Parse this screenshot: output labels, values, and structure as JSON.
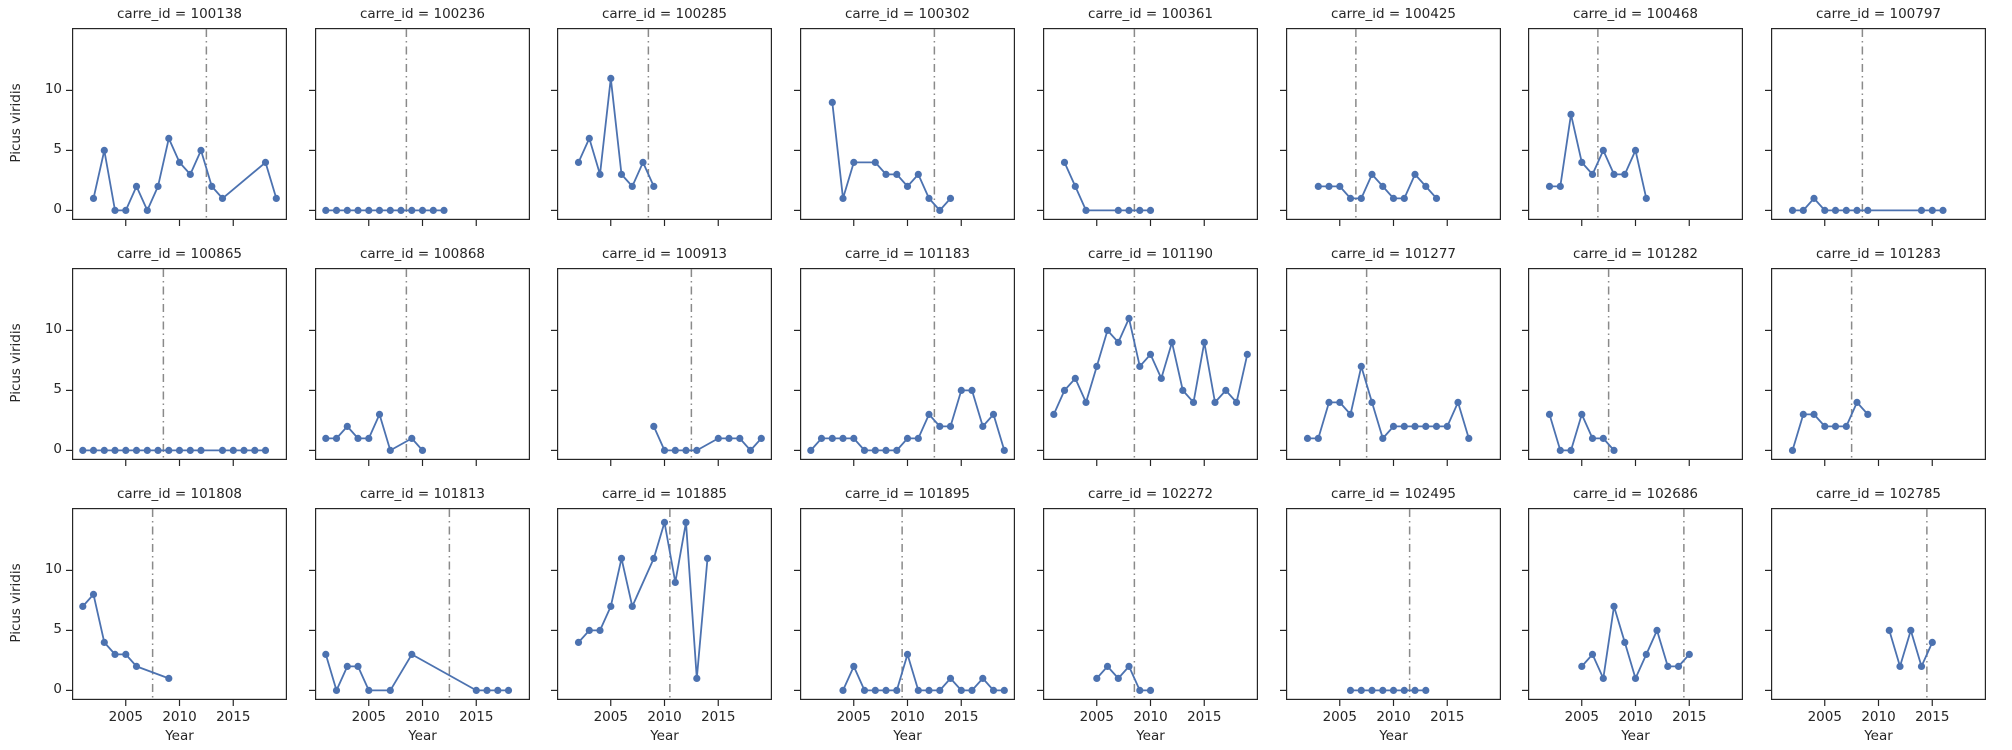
{
  "figure": {
    "x_tick_labels": [
      "2005",
      "2010",
      "2015"
    ],
    "y_tick_labels": [
      "0",
      "5",
      "10"
    ],
    "colors": {
      "series": "#4C72B0",
      "vline": "#8a8a8a",
      "axis": "#262626",
      "text": "#262626",
      "background": "#ffffff"
    }
  },
  "chart_data": {
    "type": "line",
    "facet_grid": {
      "rows": 3,
      "cols": 8,
      "facet_var": "carre_id"
    },
    "xlabel": "Year",
    "ylabel": "Picus viridis",
    "xlim": [
      2000,
      2020
    ],
    "ylim": [
      -0.8,
      15.2
    ],
    "x_ticks": [
      2005,
      2010,
      2015
    ],
    "y_ticks": [
      0,
      5,
      10
    ],
    "grid": false,
    "legend": "none",
    "marker": "circle",
    "vline_style": "dash-dot-gray",
    "panels": [
      {
        "carre_id": "100138",
        "title": "carre_id = 100138",
        "vline_year": 2012.5,
        "points": [
          [
            2002,
            1
          ],
          [
            2003,
            5
          ],
          [
            2004,
            0
          ],
          [
            2005,
            0
          ],
          [
            2006,
            2
          ],
          [
            2007,
            0
          ],
          [
            2008,
            2
          ],
          [
            2009,
            6
          ],
          [
            2010,
            4
          ],
          [
            2011,
            3
          ],
          [
            2012,
            5
          ],
          [
            2013,
            2
          ],
          [
            2014,
            1
          ],
          [
            2018,
            4
          ],
          [
            2019,
            1
          ]
        ]
      },
      {
        "carre_id": "100236",
        "title": "carre_id = 100236",
        "vline_year": 2008.5,
        "points": [
          [
            2001,
            0
          ],
          [
            2002,
            0
          ],
          [
            2003,
            0
          ],
          [
            2004,
            0
          ],
          [
            2005,
            0
          ],
          [
            2006,
            0
          ],
          [
            2007,
            0
          ],
          [
            2008,
            0
          ],
          [
            2009,
            0
          ],
          [
            2010,
            0
          ],
          [
            2011,
            0
          ],
          [
            2012,
            0
          ]
        ]
      },
      {
        "carre_id": "100285",
        "title": "carre_id = 100285",
        "vline_year": 2008.5,
        "points": [
          [
            2002,
            4
          ],
          [
            2003,
            6
          ],
          [
            2004,
            3
          ],
          [
            2005,
            11
          ],
          [
            2006,
            3
          ],
          [
            2007,
            2
          ],
          [
            2008,
            4
          ],
          [
            2009,
            2
          ]
        ]
      },
      {
        "carre_id": "100302",
        "title": "carre_id = 100302",
        "vline_year": 2012.5,
        "points": [
          [
            2003,
            9
          ],
          [
            2004,
            1
          ],
          [
            2005,
            4
          ],
          [
            2007,
            4
          ],
          [
            2008,
            3
          ],
          [
            2009,
            3
          ],
          [
            2010,
            2
          ],
          [
            2011,
            3
          ],
          [
            2012,
            1
          ],
          [
            2013,
            0
          ],
          [
            2014,
            1
          ]
        ]
      },
      {
        "carre_id": "100361",
        "title": "carre_id = 100361",
        "vline_year": 2008.5,
        "points": [
          [
            2002,
            4
          ],
          [
            2003,
            2
          ],
          [
            2004,
            0
          ],
          [
            2007,
            0
          ],
          [
            2008,
            0
          ],
          [
            2009,
            0
          ],
          [
            2010,
            0
          ]
        ]
      },
      {
        "carre_id": "100425",
        "title": "carre_id = 100425",
        "vline_year": 2006.5,
        "points": [
          [
            2003,
            2
          ],
          [
            2004,
            2
          ],
          [
            2005,
            2
          ],
          [
            2006,
            1
          ],
          [
            2007,
            1
          ],
          [
            2008,
            3
          ],
          [
            2009,
            2
          ],
          [
            2010,
            1
          ],
          [
            2011,
            1
          ],
          [
            2012,
            3
          ],
          [
            2013,
            2
          ],
          [
            2014,
            1
          ]
        ]
      },
      {
        "carre_id": "100468",
        "title": "carre_id = 100468",
        "vline_year": 2006.5,
        "points": [
          [
            2002,
            2
          ],
          [
            2003,
            2
          ],
          [
            2004,
            8
          ],
          [
            2005,
            4
          ],
          [
            2006,
            3
          ],
          [
            2007,
            5
          ],
          [
            2008,
            3
          ],
          [
            2009,
            3
          ],
          [
            2010,
            5
          ],
          [
            2011,
            1
          ]
        ]
      },
      {
        "carre_id": "100797",
        "title": "carre_id = 100797",
        "vline_year": 2008.5,
        "points": [
          [
            2002,
            0
          ],
          [
            2003,
            0
          ],
          [
            2004,
            1
          ],
          [
            2005,
            0
          ],
          [
            2006,
            0
          ],
          [
            2007,
            0
          ],
          [
            2008,
            0
          ],
          [
            2009,
            0
          ],
          [
            2014,
            0
          ],
          [
            2015,
            0
          ],
          [
            2016,
            0
          ]
        ]
      },
      {
        "carre_id": "100865",
        "title": "carre_id = 100865",
        "vline_year": 2008.5,
        "points": [
          [
            2001,
            0
          ],
          [
            2002,
            0
          ],
          [
            2003,
            0
          ],
          [
            2004,
            0
          ],
          [
            2005,
            0
          ],
          [
            2006,
            0
          ],
          [
            2007,
            0
          ],
          [
            2008,
            0
          ],
          [
            2009,
            0
          ],
          [
            2010,
            0
          ],
          [
            2011,
            0
          ],
          [
            2012,
            0
          ],
          [
            2014,
            0
          ],
          [
            2015,
            0
          ],
          [
            2016,
            0
          ],
          [
            2017,
            0
          ],
          [
            2018,
            0
          ]
        ]
      },
      {
        "carre_id": "100868",
        "title": "carre_id = 100868",
        "vline_year": 2008.5,
        "points": [
          [
            2001,
            1
          ],
          [
            2002,
            1
          ],
          [
            2003,
            2
          ],
          [
            2004,
            1
          ],
          [
            2005,
            1
          ],
          [
            2006,
            3
          ],
          [
            2007,
            0
          ],
          [
            2009,
            1
          ],
          [
            2010,
            0
          ]
        ]
      },
      {
        "carre_id": "100913",
        "title": "carre_id = 100913",
        "vline_year": 2012.5,
        "points": [
          [
            2009,
            2
          ],
          [
            2010,
            0
          ],
          [
            2011,
            0
          ],
          [
            2012,
            0
          ],
          [
            2013,
            0
          ],
          [
            2015,
            1
          ],
          [
            2016,
            1
          ],
          [
            2017,
            1
          ],
          [
            2018,
            0
          ],
          [
            2019,
            1
          ]
        ]
      },
      {
        "carre_id": "101183",
        "title": "carre_id = 101183",
        "vline_year": 2012.5,
        "points": [
          [
            2001,
            0
          ],
          [
            2002,
            1
          ],
          [
            2003,
            1
          ],
          [
            2004,
            1
          ],
          [
            2005,
            1
          ],
          [
            2006,
            0
          ],
          [
            2007,
            0
          ],
          [
            2008,
            0
          ],
          [
            2009,
            0
          ],
          [
            2010,
            1
          ],
          [
            2011,
            1
          ],
          [
            2012,
            3
          ],
          [
            2013,
            2
          ],
          [
            2014,
            2
          ],
          [
            2015,
            5
          ],
          [
            2016,
            5
          ],
          [
            2017,
            2
          ],
          [
            2018,
            3
          ],
          [
            2019,
            0
          ]
        ]
      },
      {
        "carre_id": "101190",
        "title": "carre_id = 101190",
        "vline_year": 2008.5,
        "points": [
          [
            2001,
            3
          ],
          [
            2002,
            5
          ],
          [
            2003,
            6
          ],
          [
            2004,
            4
          ],
          [
            2005,
            7
          ],
          [
            2006,
            10
          ],
          [
            2007,
            9
          ],
          [
            2008,
            11
          ],
          [
            2009,
            7
          ],
          [
            2010,
            8
          ],
          [
            2011,
            6
          ],
          [
            2012,
            9
          ],
          [
            2013,
            5
          ],
          [
            2014,
            4
          ],
          [
            2015,
            9
          ],
          [
            2016,
            4
          ],
          [
            2017,
            5
          ],
          [
            2018,
            4
          ],
          [
            2019,
            8
          ]
        ]
      },
      {
        "carre_id": "101277",
        "title": "carre_id = 101277",
        "vline_year": 2007.5,
        "points": [
          [
            2002,
            1
          ],
          [
            2003,
            1
          ],
          [
            2004,
            4
          ],
          [
            2005,
            4
          ],
          [
            2006,
            3
          ],
          [
            2007,
            7
          ],
          [
            2008,
            4
          ],
          [
            2009,
            1
          ],
          [
            2010,
            2
          ],
          [
            2011,
            2
          ],
          [
            2012,
            2
          ],
          [
            2013,
            2
          ],
          [
            2014,
            2
          ],
          [
            2015,
            2
          ],
          [
            2016,
            4
          ],
          [
            2017,
            1
          ]
        ]
      },
      {
        "carre_id": "101282",
        "title": "carre_id = 101282",
        "vline_year": 2007.5,
        "points": [
          [
            2002,
            3
          ],
          [
            2003,
            0
          ],
          [
            2004,
            0
          ],
          [
            2005,
            3
          ],
          [
            2006,
            1
          ],
          [
            2007,
            1
          ],
          [
            2008,
            0
          ]
        ]
      },
      {
        "carre_id": "101283",
        "title": "carre_id = 101283",
        "vline_year": 2007.5,
        "points": [
          [
            2002,
            0
          ],
          [
            2003,
            3
          ],
          [
            2004,
            3
          ],
          [
            2005,
            2
          ],
          [
            2006,
            2
          ],
          [
            2007,
            2
          ],
          [
            2008,
            4
          ],
          [
            2009,
            3
          ]
        ]
      },
      {
        "carre_id": "101808",
        "title": "carre_id = 101808",
        "vline_year": 2007.5,
        "points": [
          [
            2001,
            7
          ],
          [
            2002,
            8
          ],
          [
            2003,
            4
          ],
          [
            2004,
            3
          ],
          [
            2005,
            3
          ],
          [
            2006,
            2
          ],
          [
            2009,
            1
          ]
        ]
      },
      {
        "carre_id": "101813",
        "title": "carre_id = 101813",
        "vline_year": 2012.5,
        "points": [
          [
            2001,
            3
          ],
          [
            2002,
            0
          ],
          [
            2003,
            2
          ],
          [
            2004,
            2
          ],
          [
            2005,
            0
          ],
          [
            2007,
            0
          ],
          [
            2009,
            3
          ],
          [
            2015,
            0
          ],
          [
            2016,
            0
          ],
          [
            2017,
            0
          ],
          [
            2018,
            0
          ]
        ]
      },
      {
        "carre_id": "101885",
        "title": "carre_id = 101885",
        "vline_year": 2010.5,
        "points": [
          [
            2002,
            4
          ],
          [
            2003,
            5
          ],
          [
            2004,
            5
          ],
          [
            2005,
            7
          ],
          [
            2006,
            11
          ],
          [
            2007,
            7
          ],
          [
            2009,
            11
          ],
          [
            2010,
            14
          ],
          [
            2011,
            9
          ],
          [
            2012,
            14
          ],
          [
            2013,
            1
          ],
          [
            2014,
            11
          ]
        ]
      },
      {
        "carre_id": "101895",
        "title": "carre_id = 101895",
        "vline_year": 2009.5,
        "points": [
          [
            2004,
            0
          ],
          [
            2005,
            2
          ],
          [
            2006,
            0
          ],
          [
            2007,
            0
          ],
          [
            2008,
            0
          ],
          [
            2009,
            0
          ],
          [
            2010,
            3
          ],
          [
            2011,
            0
          ],
          [
            2012,
            0
          ],
          [
            2013,
            0
          ],
          [
            2014,
            1
          ],
          [
            2015,
            0
          ],
          [
            2016,
            0
          ],
          [
            2017,
            1
          ],
          [
            2018,
            0
          ],
          [
            2019,
            0
          ]
        ]
      },
      {
        "carre_id": "102272",
        "title": "carre_id = 102272",
        "vline_year": 2008.5,
        "points": [
          [
            2005,
            1
          ],
          [
            2006,
            2
          ],
          [
            2007,
            1
          ],
          [
            2008,
            2
          ],
          [
            2009,
            0
          ],
          [
            2010,
            0
          ]
        ]
      },
      {
        "carre_id": "102495",
        "title": "carre_id = 102495",
        "vline_year": 2011.5,
        "points": [
          [
            2006,
            0
          ],
          [
            2007,
            0
          ],
          [
            2008,
            0
          ],
          [
            2009,
            0
          ],
          [
            2010,
            0
          ],
          [
            2011,
            0
          ],
          [
            2012,
            0
          ],
          [
            2013,
            0
          ]
        ]
      },
      {
        "carre_id": "102686",
        "title": "carre_id = 102686",
        "vline_year": 2014.5,
        "points": [
          [
            2005,
            2
          ],
          [
            2006,
            3
          ],
          [
            2007,
            1
          ],
          [
            2008,
            7
          ],
          [
            2009,
            4
          ],
          [
            2010,
            1
          ],
          [
            2011,
            3
          ],
          [
            2012,
            5
          ],
          [
            2013,
            2
          ],
          [
            2014,
            2
          ],
          [
            2015,
            3
          ]
        ]
      },
      {
        "carre_id": "102785",
        "title": "carre_id = 102785",
        "vline_year": 2014.5,
        "points": [
          [
            2011,
            5
          ],
          [
            2012,
            2
          ],
          [
            2013,
            5
          ],
          [
            2014,
            2
          ],
          [
            2015,
            4
          ]
        ]
      }
    ]
  }
}
